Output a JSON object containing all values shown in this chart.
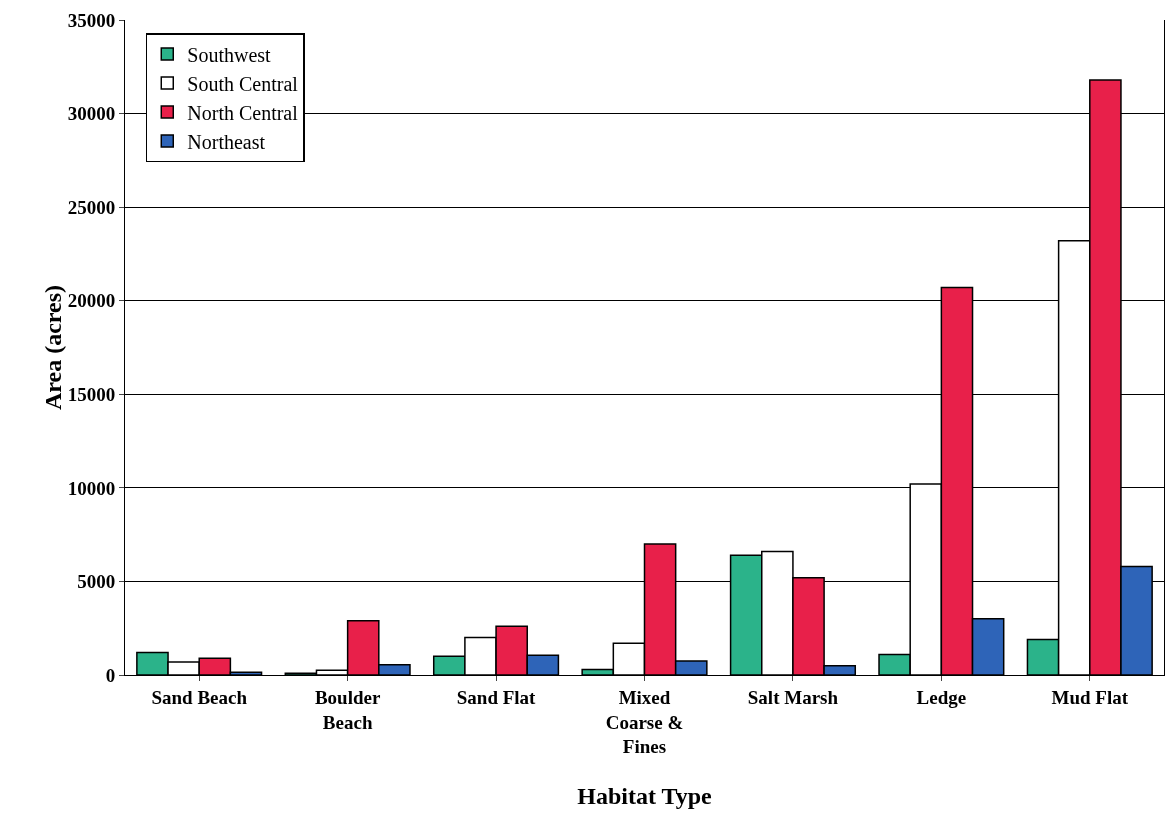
{
  "chart_data": {
    "type": "bar",
    "xlabel": "Habitat Type",
    "ylabel": "Area (acres)",
    "categories": [
      "Sand Beach",
      "Boulder Beach",
      "Sand Flat",
      "Mixed Coarse & Fines",
      "Salt Marsh",
      "Ledge",
      "Mud Flat"
    ],
    "series": [
      {
        "name": "Southwest",
        "color": "#2bb38a",
        "values": [
          1200,
          100,
          1000,
          300,
          6400,
          1100,
          1900
        ]
      },
      {
        "name": "South Central",
        "color": "#ffffff",
        "values": [
          700,
          250,
          2000,
          1700,
          6600,
          10200,
          23200
        ]
      },
      {
        "name": "North Central",
        "color": "#e8204a",
        "values": [
          900,
          2900,
          2600,
          7000,
          5200,
          20700,
          31800
        ]
      },
      {
        "name": "Northeast",
        "color": "#2e64b8",
        "values": [
          150,
          550,
          1050,
          750,
          500,
          3000,
          5800
        ]
      }
    ],
    "ylim": [
      0,
      35000
    ],
    "yticks": [
      0,
      5000,
      10000,
      15000,
      20000,
      25000,
      30000,
      35000
    ],
    "grid": "y",
    "legend": "top left"
  }
}
